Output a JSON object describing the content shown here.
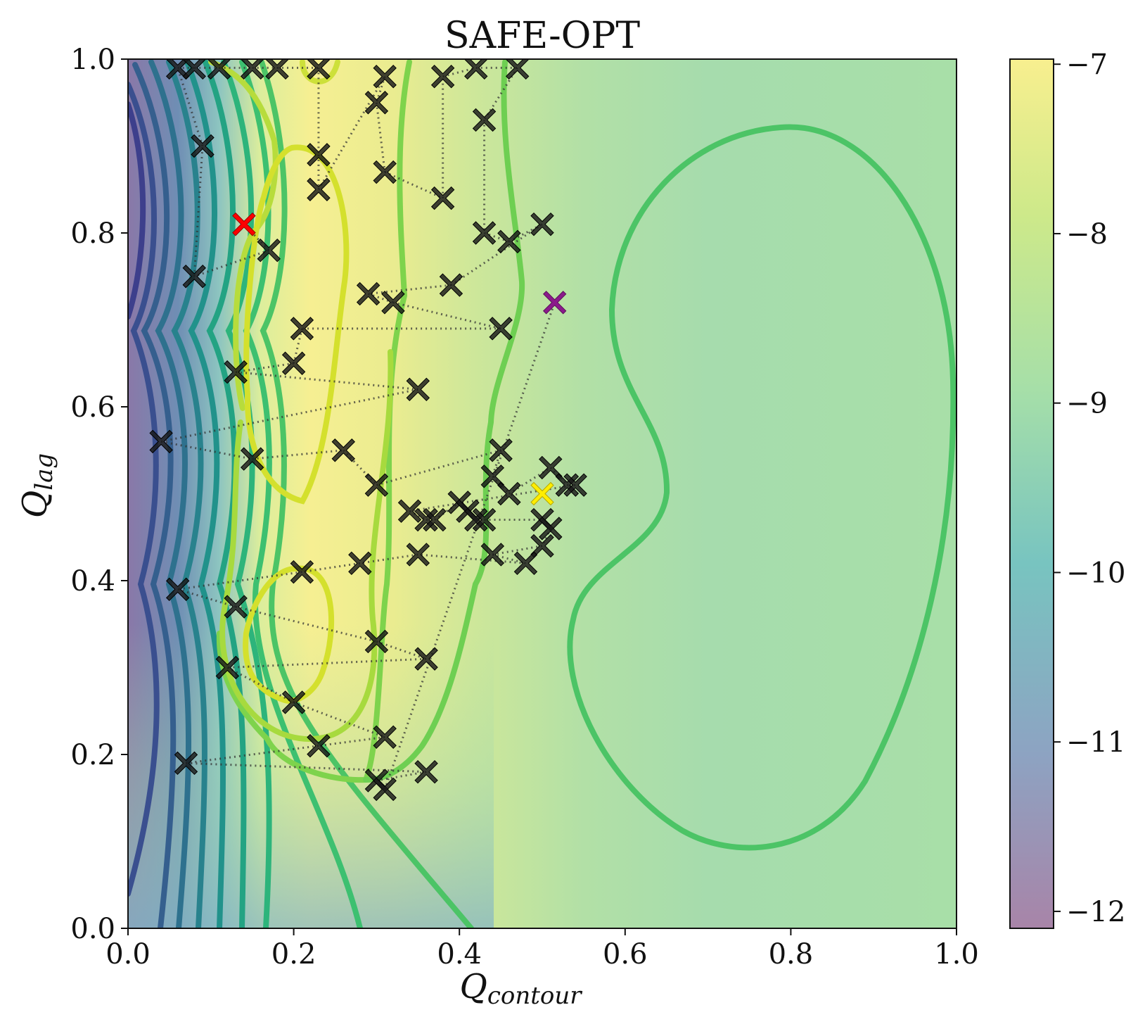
{
  "chart_data": {
    "type": "scatter",
    "subtype": "contour-with-sample-trajectory",
    "title": "SAFE-OPT",
    "xlabel": "Q_contour",
    "ylabel": "Q_lag",
    "xlim": [
      0.0,
      1.0
    ],
    "ylim": [
      0.0,
      1.0
    ],
    "xticks": [
      "0.0",
      "0.2",
      "0.4",
      "0.6",
      "0.8",
      "1.0"
    ],
    "yticks": [
      "0.0",
      "0.2",
      "0.4",
      "0.6",
      "0.8",
      "1.0"
    ],
    "colorbar": {
      "range": [
        -12.1,
        -6.97
      ],
      "ticks": [
        "−7",
        "−8",
        "−9",
        "−10",
        "−11",
        "−12"
      ],
      "tick_values": [
        -7,
        -8,
        -9,
        -10,
        -11,
        -12
      ],
      "colormap": "viridis"
    },
    "grid": false,
    "markers": {
      "sample_color": "#1a1a1a",
      "start_color": "#ff0000",
      "best_color": "#ffee00",
      "last_color": "#8b1a8b",
      "path_color": "#333333"
    },
    "samples": [
      [
        0.14,
        0.81
      ],
      [
        0.17,
        0.78
      ],
      [
        0.08,
        0.75
      ],
      [
        0.09,
        0.9
      ],
      [
        0.06,
        0.99
      ],
      [
        0.08,
        0.99
      ],
      [
        0.11,
        0.99
      ],
      [
        0.15,
        0.99
      ],
      [
        0.18,
        0.99
      ],
      [
        0.23,
        0.99
      ],
      [
        0.23,
        0.89
      ],
      [
        0.23,
        0.85
      ],
      [
        0.31,
        0.98
      ],
      [
        0.3,
        0.95
      ],
      [
        0.31,
        0.87
      ],
      [
        0.38,
        0.84
      ],
      [
        0.38,
        0.98
      ],
      [
        0.42,
        0.99
      ],
      [
        0.47,
        0.99
      ],
      [
        0.43,
        0.93
      ],
      [
        0.43,
        0.8
      ],
      [
        0.46,
        0.79
      ],
      [
        0.5,
        0.81
      ],
      [
        0.39,
        0.74
      ],
      [
        0.29,
        0.73
      ],
      [
        0.32,
        0.72
      ],
      [
        0.45,
        0.69
      ],
      [
        0.21,
        0.69
      ],
      [
        0.2,
        0.65
      ],
      [
        0.13,
        0.64
      ],
      [
        0.35,
        0.62
      ],
      [
        0.04,
        0.56
      ],
      [
        0.15,
        0.54
      ],
      [
        0.26,
        0.55
      ],
      [
        0.3,
        0.51
      ],
      [
        0.45,
        0.55
      ],
      [
        0.44,
        0.52
      ],
      [
        0.46,
        0.5
      ],
      [
        0.51,
        0.53
      ],
      [
        0.53,
        0.51
      ],
      [
        0.54,
        0.51
      ],
      [
        0.34,
        0.48
      ],
      [
        0.36,
        0.47
      ],
      [
        0.37,
        0.47
      ],
      [
        0.4,
        0.49
      ],
      [
        0.41,
        0.48
      ],
      [
        0.42,
        0.47
      ],
      [
        0.43,
        0.47
      ],
      [
        0.5,
        0.47
      ],
      [
        0.51,
        0.46
      ],
      [
        0.5,
        0.44
      ],
      [
        0.44,
        0.43
      ],
      [
        0.48,
        0.42
      ],
      [
        0.35,
        0.43
      ],
      [
        0.28,
        0.42
      ],
      [
        0.21,
        0.41
      ],
      [
        0.06,
        0.39
      ],
      [
        0.13,
        0.37
      ],
      [
        0.3,
        0.33
      ],
      [
        0.36,
        0.31
      ],
      [
        0.12,
        0.3
      ],
      [
        0.2,
        0.26
      ],
      [
        0.31,
        0.22
      ],
      [
        0.23,
        0.21
      ],
      [
        0.07,
        0.19
      ],
      [
        0.36,
        0.18
      ],
      [
        0.3,
        0.17
      ],
      [
        0.31,
        0.16
      ]
    ],
    "start_point": [
      0.14,
      0.81
    ],
    "best_point": [
      0.5,
      0.5
    ],
    "last_point": [
      0.515,
      0.72
    ]
  }
}
